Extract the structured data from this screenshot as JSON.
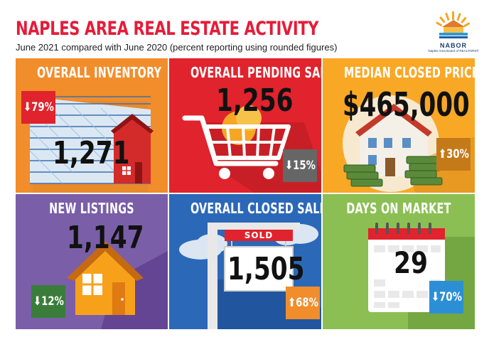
{
  "header": {
    "title": "NAPLES AREA REAL ESTATE ACTIVITY",
    "subtitle": "June 2021 compared with June 2020 (percent reporting using rounded figures)"
  },
  "logo": {
    "name": "NABOR",
    "tagline": "Naples Area Board of REALTORS®"
  },
  "tiles": [
    {
      "title": "OVERALL INVENTORY",
      "value": "1,271",
      "change": "79%",
      "direction": "down",
      "color": "#f18d2b",
      "badge_color": "#e0232d"
    },
    {
      "title": "OVERALL PENDING SALES",
      "value": "1,256",
      "change": "15%",
      "direction": "down",
      "color": "#e0232d",
      "badge_color": "#666666"
    },
    {
      "title": "MEDIAN CLOSED PRICE",
      "value": "$465,000",
      "change": "30%",
      "direction": "up",
      "color": "#f9a826",
      "badge_color": "#c57a1a"
    },
    {
      "title": "NEW LISTINGS",
      "value": "1,147",
      "change": "12%",
      "direction": "down",
      "color": "#7a5ea8",
      "badge_color": "#3a7d3a"
    },
    {
      "title": "OVERALL CLOSED SALES",
      "value": "1,505",
      "change": "68%",
      "direction": "up",
      "color": "#2c68b8",
      "badge_color": "#f18d2b",
      "sign_text": "SOLD"
    },
    {
      "title": "DAYS ON MARKET",
      "value": "29",
      "change": "70%",
      "direction": "down",
      "color": "#8bbf53",
      "badge_color": "#2c8fd6"
    }
  ],
  "arrows": {
    "down": "⬇",
    "up": "⬆"
  },
  "icons": [
    "house-chart-icon",
    "shopping-cart-icon",
    "house-money-icon",
    "house-icon",
    "sold-sign-icon",
    "calendar-icon"
  ]
}
